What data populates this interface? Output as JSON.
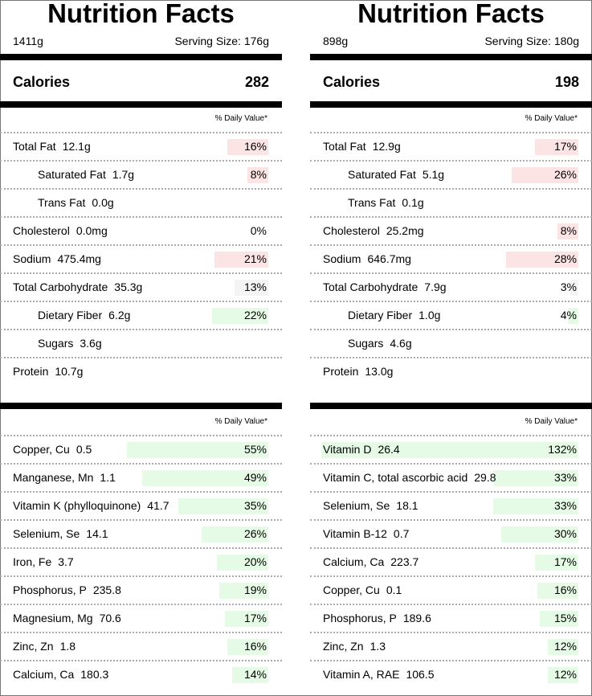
{
  "colors": {
    "high": "#fde4e4",
    "neutral": "#f4f4f4",
    "good": "#e6fbe6"
  },
  "left": {
    "title": "Nutrition Facts",
    "total_weight": "1411g",
    "serving_size": "Serving Size: 176g",
    "calories_label": "Calories",
    "calories_value": "282",
    "dv_header": "% Daily Value*",
    "nutrients": [
      {
        "name": "Total Fat",
        "amount": "12.1g",
        "pct": "16%",
        "level": 16,
        "color": "high",
        "indent": false
      },
      {
        "name": "Saturated Fat",
        "amount": "1.7g",
        "pct": "8%",
        "level": 8,
        "color": "high",
        "indent": true
      },
      {
        "name": "Trans Fat",
        "amount": "0.0g",
        "pct": "",
        "level": 0,
        "color": "",
        "indent": true
      },
      {
        "name": "Cholesterol",
        "amount": "0.0mg",
        "pct": "0%",
        "level": 0,
        "color": "",
        "indent": false
      },
      {
        "name": "Sodium",
        "amount": "475.4mg",
        "pct": "21%",
        "level": 21,
        "color": "high",
        "indent": false
      },
      {
        "name": "Total Carbohydrate",
        "amount": "35.3g",
        "pct": "13%",
        "level": 13,
        "color": "neutral",
        "indent": false
      },
      {
        "name": "Dietary Fiber",
        "amount": "6.2g",
        "pct": "22%",
        "level": 22,
        "color": "good",
        "indent": true
      },
      {
        "name": "Sugars",
        "amount": "3.6g",
        "pct": "",
        "level": 0,
        "color": "",
        "indent": true
      },
      {
        "name": "Protein",
        "amount": "10.7g",
        "pct": "",
        "level": 0,
        "color": "",
        "indent": false
      }
    ],
    "dv_header_2": "% Daily Value*",
    "micros": [
      {
        "name": "Copper, Cu",
        "amount": "0.5",
        "pct": "55%",
        "level": 55,
        "color": "good"
      },
      {
        "name": "Manganese, Mn",
        "amount": "1.1",
        "pct": "49%",
        "level": 49,
        "color": "good"
      },
      {
        "name": "Vitamin K (phylloquinone)",
        "amount": "41.7",
        "pct": "35%",
        "level": 35,
        "color": "good"
      },
      {
        "name": "Selenium, Se",
        "amount": "14.1",
        "pct": "26%",
        "level": 26,
        "color": "good"
      },
      {
        "name": "Iron, Fe",
        "amount": "3.7",
        "pct": "20%",
        "level": 20,
        "color": "good"
      },
      {
        "name": "Phosphorus, P",
        "amount": "235.8",
        "pct": "19%",
        "level": 19,
        "color": "good"
      },
      {
        "name": "Magnesium, Mg",
        "amount": "70.6",
        "pct": "17%",
        "level": 17,
        "color": "good"
      },
      {
        "name": "Zinc, Zn",
        "amount": "1.8",
        "pct": "16%",
        "level": 16,
        "color": "good"
      },
      {
        "name": "Calcium, Ca",
        "amount": "180.3",
        "pct": "14%",
        "level": 14,
        "color": "good"
      }
    ]
  },
  "right": {
    "title": "Nutrition Facts",
    "total_weight": "898g",
    "serving_size": "Serving Size: 180g",
    "calories_label": "Calories",
    "calories_value": "198",
    "dv_header": "% Daily Value*",
    "nutrients": [
      {
        "name": "Total Fat",
        "amount": "12.9g",
        "pct": "17%",
        "level": 17,
        "color": "high",
        "indent": false
      },
      {
        "name": "Saturated Fat",
        "amount": "5.1g",
        "pct": "26%",
        "level": 26,
        "color": "high",
        "indent": true
      },
      {
        "name": "Trans Fat",
        "amount": "0.1g",
        "pct": "",
        "level": 0,
        "color": "",
        "indent": true
      },
      {
        "name": "Cholesterol",
        "amount": "25.2mg",
        "pct": "8%",
        "level": 8,
        "color": "high",
        "indent": false
      },
      {
        "name": "Sodium",
        "amount": "646.7mg",
        "pct": "28%",
        "level": 28,
        "color": "high",
        "indent": false
      },
      {
        "name": "Total Carbohydrate",
        "amount": "7.9g",
        "pct": "3%",
        "level": 3,
        "color": "neutral",
        "indent": false
      },
      {
        "name": "Dietary Fiber",
        "amount": "1.0g",
        "pct": "4%",
        "level": 4,
        "color": "good",
        "indent": true
      },
      {
        "name": "Sugars",
        "amount": "4.6g",
        "pct": "",
        "level": 0,
        "color": "",
        "indent": true
      },
      {
        "name": "Protein",
        "amount": "13.0g",
        "pct": "",
        "level": 0,
        "color": "",
        "indent": false
      }
    ],
    "dv_header_2": "% Daily Value*",
    "micros": [
      {
        "name": "Vitamin D",
        "amount": "26.4",
        "pct": "132%",
        "level": 132,
        "color": "good"
      },
      {
        "name": "Vitamin C, total ascorbic acid",
        "amount": "29.8",
        "pct": "33%",
        "level": 33,
        "color": "good"
      },
      {
        "name": "Selenium, Se",
        "amount": "18.1",
        "pct": "33%",
        "level": 33,
        "color": "good"
      },
      {
        "name": "Vitamin B-12",
        "amount": "0.7",
        "pct": "30%",
        "level": 30,
        "color": "good"
      },
      {
        "name": "Calcium, Ca",
        "amount": "223.7",
        "pct": "17%",
        "level": 17,
        "color": "good"
      },
      {
        "name": "Copper, Cu",
        "amount": "0.1",
        "pct": "16%",
        "level": 16,
        "color": "good"
      },
      {
        "name": "Phosphorus, P",
        "amount": "189.6",
        "pct": "15%",
        "level": 15,
        "color": "good"
      },
      {
        "name": "Zinc, Zn",
        "amount": "1.3",
        "pct": "12%",
        "level": 12,
        "color": "good"
      },
      {
        "name": "Vitamin A, RAE",
        "amount": "106.5",
        "pct": "12%",
        "level": 12,
        "color": "good"
      }
    ]
  }
}
